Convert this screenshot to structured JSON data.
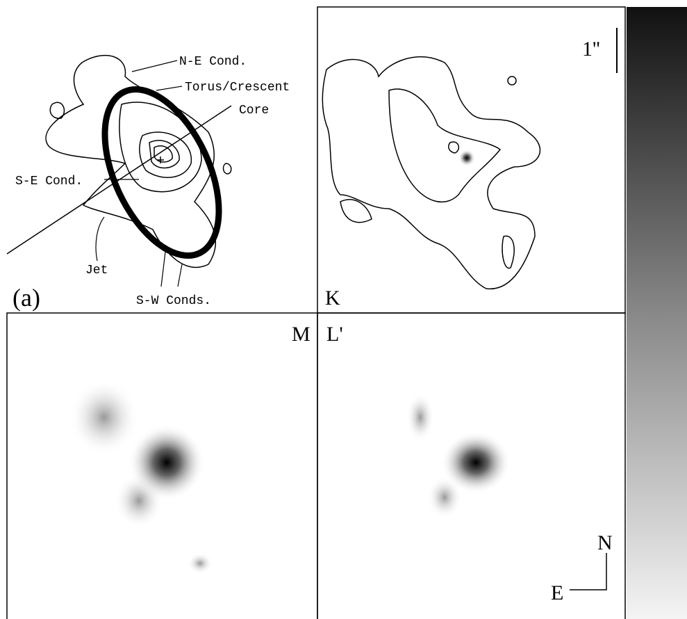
{
  "panel_a": {
    "label": "(a)",
    "annotations": [
      "N-E Cond.",
      "Torus/Crescent",
      "Core",
      "S-E Cond.",
      "Jet",
      "S-W Conds."
    ]
  },
  "panel_k": {
    "label": "K",
    "scale_label": "1''"
  },
  "panel_m": {
    "label": "M"
  },
  "panel_l": {
    "label": "L'",
    "compass": {
      "north": "N",
      "east": "E"
    }
  }
}
